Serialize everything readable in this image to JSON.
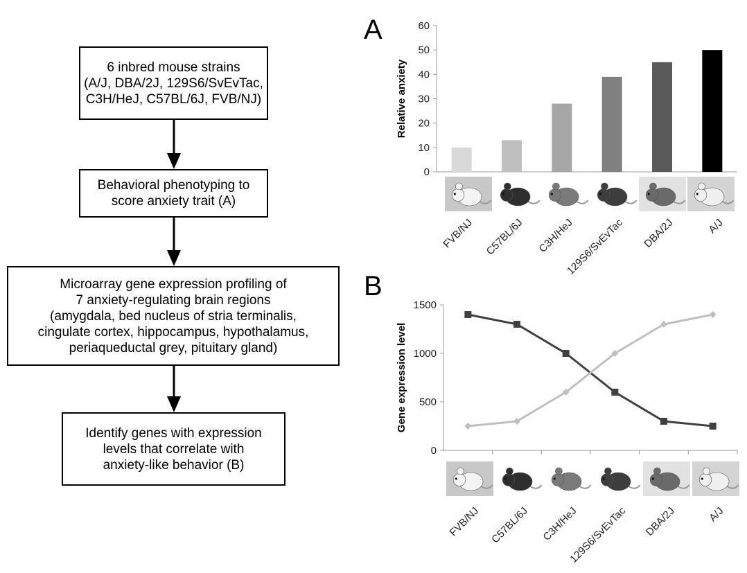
{
  "flowchart": {
    "steps": [
      {
        "lines": [
          "6 inbred mouse strains",
          "(A/J, DBA/2J, 129S6/SvEvTac,",
          "C3H/HeJ, C57BL/6J, FVB/NJ)"
        ]
      },
      {
        "lines": [
          "Behavioral phenotyping to",
          "score anxiety trait (A)"
        ]
      },
      {
        "lines": [
          "Microarray gene expression profiling of",
          "7 anxiety-regulating brain regions",
          "(amygdala, bed nucleus of stria terminalis,",
          "cingulate cortex, hippocampus, hypothalamus,",
          "periaqueductal grey, pituitary gland)"
        ]
      },
      {
        "lines": [
          "Identify genes with expression",
          "levels that correlate with",
          "anxiety-like behavior (B)"
        ]
      }
    ]
  },
  "chart_data": [
    {
      "type": "bar",
      "panel_label": "A",
      "categories": [
        "FVB/NJ",
        "C57BL/6J",
        "C3H/HeJ",
        "129S6/SvEvTac",
        "DBA/2J",
        "A/J"
      ],
      "values": [
        10,
        13,
        28,
        39,
        45,
        50
      ],
      "bar_colors": [
        "#d9d9d9",
        "#bfbfbf",
        "#a6a6a6",
        "#808080",
        "#595959",
        "#000000"
      ],
      "ylabel": "Relative anxiety",
      "ylim": [
        0,
        60
      ],
      "yticks": [
        0,
        10,
        20,
        30,
        40,
        50,
        60
      ],
      "grid": false
    },
    {
      "type": "line",
      "panel_label": "B",
      "categories": [
        "FVB/NJ",
        "C57BL/6J",
        "C3H/HeJ",
        "129S6/SvEvTac",
        "DBA/2J",
        "A/J"
      ],
      "series": [
        {
          "values": [
            1400,
            1300,
            1000,
            600,
            300,
            250
          ],
          "color": "#404040",
          "marker": "square"
        },
        {
          "values": [
            250,
            300,
            600,
            1000,
            1300,
            1400
          ],
          "color": "#bfbfbf",
          "marker": "diamond"
        }
      ],
      "ylabel": "Gene expression level",
      "ylim": [
        0,
        1500
      ],
      "yticks": [
        0,
        500,
        1000,
        1500
      ],
      "grid": false
    }
  ]
}
